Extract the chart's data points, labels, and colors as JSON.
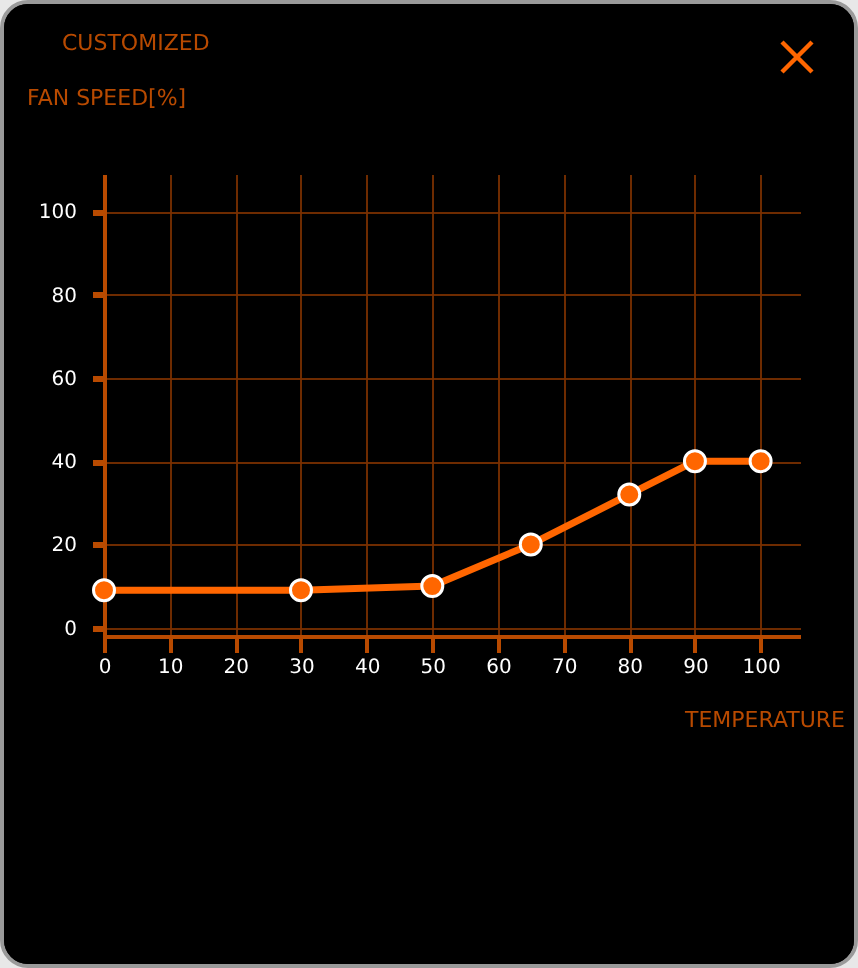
{
  "chart_data": {
    "type": "line",
    "title": "CUSTOMIZED",
    "ylabel": "FAN SPEED[%]",
    "xlabel": "TEMPERATURE",
    "x": [
      0,
      30,
      50,
      65,
      80,
      90,
      100
    ],
    "series": [
      {
        "color": "#ff6600",
        "values": [
          9,
          9,
          10,
          20,
          32,
          40,
          40
        ]
      }
    ],
    "xlim": [
      0,
      106
    ],
    "ylim": [
      -2,
      109
    ],
    "xticks": [
      0,
      10,
      20,
      30,
      40,
      50,
      60,
      70,
      80,
      90,
      100
    ],
    "yticks": [
      0,
      20,
      40,
      60,
      80,
      100
    ],
    "grid": true,
    "marker": "circle",
    "line_style": "solid"
  }
}
